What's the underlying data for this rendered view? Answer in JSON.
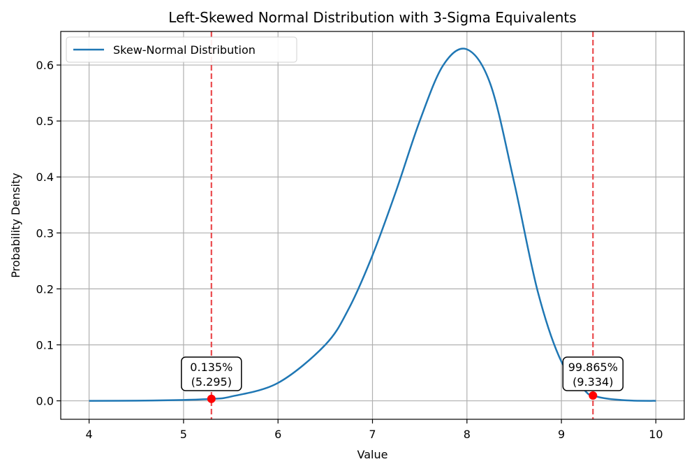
{
  "chart_data": {
    "type": "line",
    "title": "Left-Skewed Normal Distribution with 3-Sigma Equivalents",
    "xlabel": "Value",
    "ylabel": "Probability Density",
    "xlim": [
      3.7,
      10.3
    ],
    "ylim": [
      -0.033,
      0.66
    ],
    "grid": true,
    "legend_position": "upper left",
    "x_ticks": [
      4,
      5,
      6,
      7,
      8,
      9,
      10
    ],
    "y_ticks": [
      0.0,
      0.1,
      0.2,
      0.3,
      0.4,
      0.5,
      0.6
    ],
    "x_tick_labels": [
      "4",
      "5",
      "6",
      "7",
      "8",
      "9",
      "10"
    ],
    "y_tick_labels": [
      "0.0",
      "0.1",
      "0.2",
      "0.3",
      "0.4",
      "0.5",
      "0.6"
    ],
    "series": [
      {
        "name": "Skew-Normal Distribution",
        "color": "#1f77b4",
        "x": [
          4.0,
          4.5,
          5.0,
          5.295,
          5.5,
          6.0,
          6.5,
          6.75,
          7.0,
          7.25,
          7.5,
          7.75,
          8.0,
          8.25,
          8.5,
          8.75,
          9.0,
          9.25,
          9.334,
          9.5,
          9.75,
          10.0
        ],
        "y": [
          0.0,
          0.0003,
          0.0015,
          0.0035,
          0.0075,
          0.032,
          0.1,
          0.165,
          0.26,
          0.375,
          0.5,
          0.6,
          0.628,
          0.565,
          0.39,
          0.195,
          0.07,
          0.018,
          0.0095,
          0.0035,
          0.0004,
          0.0
        ]
      }
    ],
    "vlines": [
      {
        "x": 5.295,
        "color": "#e8373a",
        "style": "dashed"
      },
      {
        "x": 9.334,
        "color": "#e8373a",
        "style": "dashed"
      }
    ],
    "markers": [
      {
        "x": 5.295,
        "y": 0.0035,
        "color": "#ff0000"
      },
      {
        "x": 9.334,
        "y": 0.0095,
        "color": "#ff0000"
      }
    ],
    "annotations": [
      {
        "x": 5.295,
        "y": 0.0035,
        "line1": "0.135%",
        "line2": "(5.295)"
      },
      {
        "x": 9.334,
        "y": 0.0095,
        "line1": "99.865%",
        "line2": "(9.334)"
      }
    ]
  }
}
